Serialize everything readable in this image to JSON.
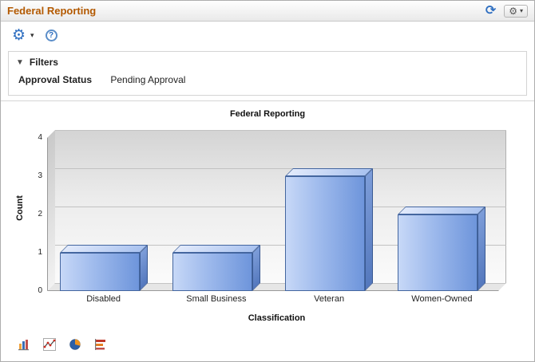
{
  "header": {
    "title": "Federal Reporting"
  },
  "icons": {
    "refresh": "⟳",
    "gear": "⚙",
    "caret": "▾",
    "help": "?",
    "collapse": "▼"
  },
  "filters": {
    "title": "Filters",
    "label": "Approval Status",
    "value": "Pending Approval"
  },
  "chart_data": {
    "type": "bar",
    "style": "3d-column",
    "title": "Federal Reporting",
    "categories": [
      "Disabled",
      "Small Business",
      "Veteran",
      "Women-Owned"
    ],
    "values": [
      1,
      1,
      3,
      2
    ],
    "xlabel": "Classification",
    "ylabel": "Count",
    "ylim": [
      0,
      4
    ],
    "yticks": [
      0,
      1,
      2,
      3,
      4
    ],
    "grid": true,
    "legend": "none",
    "bar_color": "#7fa3e0"
  },
  "chart_type_switcher": [
    "column-chart",
    "line-chart",
    "pie-chart",
    "horizontal-bar-chart"
  ],
  "colors": {
    "title": "#b35900",
    "accent": "#2f6fc1"
  }
}
